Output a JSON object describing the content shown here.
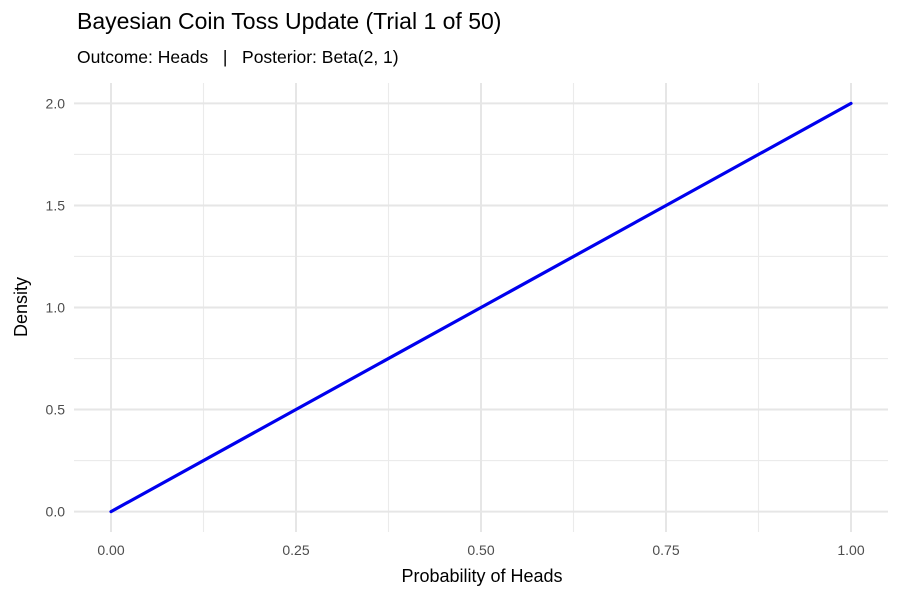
{
  "chart_data": {
    "type": "line",
    "title": "Bayesian Coin Toss Update (Trial 1 of 50)",
    "subtitle": "Outcome: Heads   |   Posterior: Beta(2, 1)",
    "xlabel": "Probability of Heads",
    "ylabel": "Density",
    "xlim": [
      -0.05,
      1.05
    ],
    "ylim": [
      -0.1,
      2.1
    ],
    "x_ticks": [
      0.0,
      0.25,
      0.5,
      0.75,
      1.0
    ],
    "x_tick_labels": [
      "0.00",
      "0.25",
      "0.50",
      "0.75",
      "1.00"
    ],
    "y_ticks": [
      0.0,
      0.5,
      1.0,
      1.5,
      2.0
    ],
    "y_tick_labels": [
      "0.0",
      "0.5",
      "1.0",
      "1.5",
      "2.0"
    ],
    "x_minor": [
      0.125,
      0.375,
      0.625,
      0.875
    ],
    "y_minor": [
      0.25,
      0.75,
      1.25,
      1.75
    ],
    "grid": true,
    "series": [
      {
        "color": "#0000ee",
        "x": [
          0.0,
          0.25,
          0.5,
          0.75,
          1.0
        ],
        "y": [
          0.0,
          0.5,
          1.0,
          1.5,
          2.0
        ]
      }
    ]
  }
}
